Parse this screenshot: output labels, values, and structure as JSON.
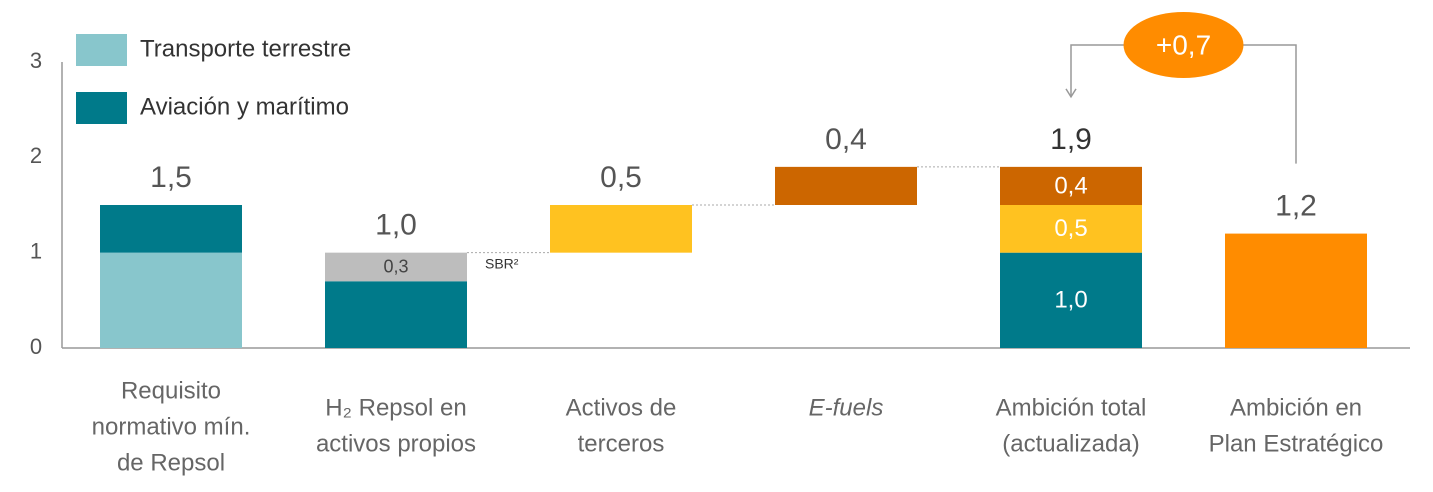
{
  "chart_data": {
    "type": "waterfall",
    "categories": [
      [
        "Requisito",
        "normativo mín.",
        "de Repsol"
      ],
      [
        "H₂ Repsol en",
        "activos propios"
      ],
      [
        "Activos de",
        "terceros"
      ],
      [
        "E-fuels"
      ],
      [
        "Ambición total",
        "(actualizada)"
      ],
      [
        "Ambición en",
        "Plan Estratégico"
      ]
    ],
    "italic_categories": [
      3
    ],
    "kinds": [
      "total",
      "total",
      "step",
      "step",
      "total",
      "total"
    ],
    "series": [
      {
        "name": "Transporte terrestre",
        "color": "#88c6cc",
        "legend": true,
        "values": [
          1.0,
          null,
          null,
          null,
          null,
          null
        ],
        "value_labels": [
          null,
          null,
          null,
          null,
          null,
          null
        ]
      },
      {
        "name": "Aviación y marítimo",
        "color": "#007a8a",
        "legend": true,
        "values": [
          0.5,
          0.7,
          null,
          null,
          1.0,
          null
        ],
        "value_labels": [
          null,
          null,
          null,
          null,
          "1,0",
          null
        ]
      },
      {
        "name": "SBR²",
        "color": "#bdbdbd",
        "legend": false,
        "label_color": "#444",
        "values": [
          null,
          0.3,
          null,
          null,
          null,
          null
        ],
        "value_labels": [
          null,
          "0,3",
          null,
          null,
          null,
          null
        ]
      },
      {
        "color": "#ffc220",
        "legend": false,
        "values": [
          null,
          null,
          0.5,
          null,
          0.5,
          null
        ],
        "value_labels": [
          null,
          null,
          null,
          null,
          "0,5",
          null
        ]
      },
      {
        "color": "#cc6600",
        "legend": false,
        "values": [
          null,
          null,
          null,
          0.4,
          0.4,
          null
        ],
        "value_labels": [
          null,
          null,
          null,
          null,
          "0,4",
          null
        ]
      },
      {
        "color": "#ff8c00",
        "legend": false,
        "values": [
          null,
          null,
          null,
          null,
          null,
          1.2
        ],
        "value_labels": [
          null,
          null,
          null,
          null,
          null,
          null
        ]
      }
    ],
    "top_labels": [
      "1,5",
      "1,0",
      "0,5",
      "0,4",
      "1,9",
      "1,2"
    ],
    "ylim": [
      0,
      3
    ],
    "yticks": [
      0,
      1,
      2,
      3
    ],
    "annotation": {
      "text": "+0,7",
      "from": 5,
      "to": 4,
      "color": "#ff8c00"
    }
  }
}
